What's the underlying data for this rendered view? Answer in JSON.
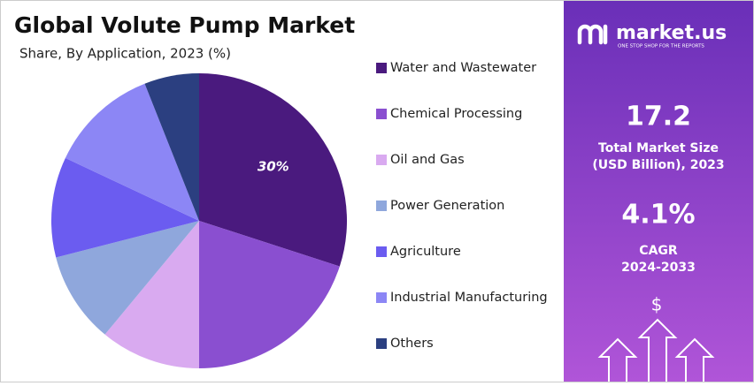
{
  "chart_data": {
    "type": "pie",
    "title": "Global Volute Pump Market",
    "subtitle": "Share, By Application, 2023 (%)",
    "categories": [
      "Water and Wastewater",
      "Chemical Processing",
      "Oil and Gas",
      "Power Generation",
      "Agriculture",
      "Industrial Manufacturing",
      "Others"
    ],
    "values": [
      30,
      20,
      11,
      10,
      11,
      12,
      6
    ],
    "value_labels": [
      "30%",
      null,
      null,
      null,
      null,
      null,
      null
    ],
    "colors": [
      "#4a1a7e",
      "#8a4fd0",
      "#d9aaf0",
      "#8fa7dc",
      "#6b5cf0",
      "#8c86f5",
      "#2b3f80"
    ],
    "legend": "right"
  },
  "panel": {
    "brand": "market.us",
    "tagline": "ONE STOP SHOP FOR THE REPORTS",
    "market_size": "17.2",
    "market_size_label": [
      "Total Market Size",
      "(USD Billion), 2023"
    ],
    "cagr": "4.1%",
    "cagr_label": [
      "CAGR",
      "2024-2033"
    ],
    "icon_symbol": "$"
  }
}
